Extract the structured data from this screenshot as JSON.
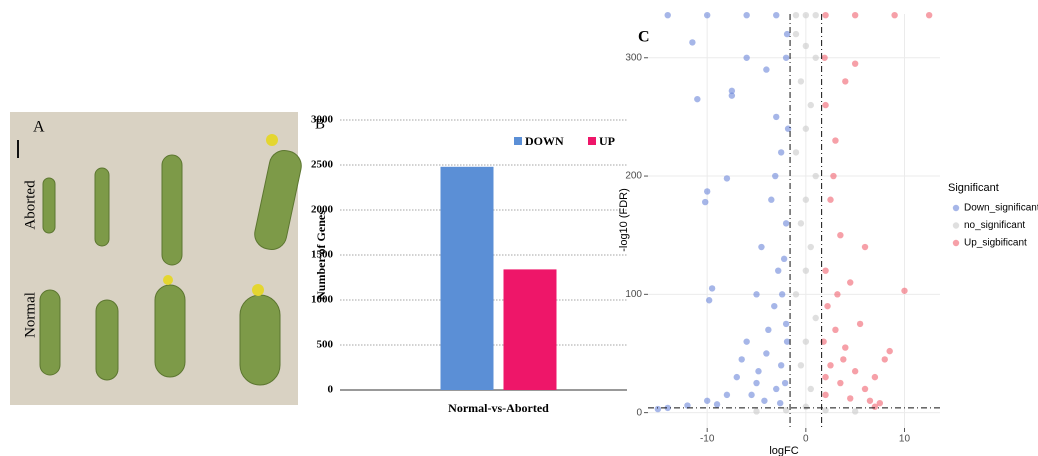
{
  "photo_panel": {
    "label": "A",
    "row_labels": [
      "Aborted",
      "Normal"
    ]
  },
  "chart_data": [
    {
      "type": "bar",
      "panel_label": "B",
      "ylabel": "Number of Genes",
      "categories": [
        "Normal-vs-Aborted"
      ],
      "series": [
        {
          "name": "DOWN",
          "color": "#5b8fd6",
          "values": [
            2480
          ]
        },
        {
          "name": "UP",
          "color": "#ee1669",
          "values": [
            1340
          ]
        }
      ],
      "ylim": [
        0,
        3000
      ],
      "yticks": [
        0,
        500,
        1000,
        1500,
        2000,
        2500,
        3000
      ],
      "grid": true,
      "legend": "upper right"
    },
    {
      "type": "scatter",
      "panel_label": "C",
      "xlabel": "logFC",
      "ylabel": "-log10 (FDR)",
      "legend_title": "Significant",
      "xlim": [
        -16,
        13.6
      ],
      "ylim": [
        -13,
        337
      ],
      "xticks": [
        -10,
        0,
        10
      ],
      "yticks": [
        0,
        100,
        200,
        300
      ],
      "vlines": [
        -1.6,
        1.6
      ],
      "hlines": [
        4
      ],
      "grid": true,
      "series": [
        {
          "name": "Down_significant",
          "color": "#6a85d9",
          "x": [
            -11,
            -11.5,
            -7.5,
            -7.5,
            -10,
            -10.2,
            -9.5,
            -9.8,
            -8,
            -6,
            -4,
            -3,
            -2.5,
            -3.5,
            -2,
            -4.5,
            -2.8,
            -5,
            -3.2,
            -2,
            -6,
            -4,
            -2.5,
            -7,
            -5,
            -3,
            -8,
            -10,
            -12,
            -14,
            -2,
            -1.8,
            -2.2,
            -1.9,
            -3.8,
            -4.8,
            -2.4,
            -3.1,
            -6.5,
            -5.5,
            -15,
            -1.9,
            -2.1,
            -2.6,
            -4.2,
            -9,
            -14,
            -10,
            -6,
            -3
          ],
          "y": [
            265,
            313,
            268,
            272,
            187,
            178,
            105,
            95,
            198,
            300,
            290,
            250,
            220,
            180,
            160,
            140,
            120,
            100,
            90,
            75,
            60,
            50,
            40,
            30,
            25,
            20,
            15,
            10,
            6,
            4,
            300,
            240,
            130,
            60,
            70,
            35,
            100,
            200,
            45,
            15,
            3,
            320,
            25,
            8,
            10,
            7,
            336,
            336,
            336,
            336
          ]
        },
        {
          "name": "no_significant",
          "color": "#c9c9c9",
          "x": [
            -1,
            0,
            1,
            -0.5,
            0.5,
            0,
            -1,
            1,
            0,
            -0.5,
            0.5,
            0,
            -1,
            1,
            0,
            -0.5,
            0.5,
            0,
            -2,
            2,
            -5,
            5,
            0,
            -1,
            1
          ],
          "y": [
            320,
            310,
            300,
            280,
            260,
            240,
            220,
            200,
            180,
            160,
            140,
            120,
            100,
            80,
            60,
            40,
            20,
            5,
            2,
            2,
            1,
            1,
            336,
            336,
            336
          ]
        },
        {
          "name": "Up_sigbificant",
          "color": "#f0606e",
          "x": [
            2,
            3,
            4,
            5,
            2.5,
            3.5,
            2,
            4.5,
            6,
            10,
            8.5,
            8,
            7,
            6,
            2.2,
            3,
            4,
            2.5,
            5,
            3.5,
            2,
            6.5,
            7.5,
            4.5,
            1.9,
            2.8,
            3.2,
            1.8,
            5.5,
            3.8,
            2,
            7,
            9,
            12.5,
            5,
            2
          ],
          "y": [
            260,
            230,
            280,
            295,
            180,
            150,
            120,
            110,
            140,
            103,
            52,
            45,
            30,
            20,
            90,
            70,
            55,
            40,
            35,
            25,
            15,
            10,
            8,
            12,
            300,
            200,
            100,
            60,
            75,
            45,
            30,
            5,
            336,
            336,
            336,
            336
          ]
        }
      ]
    }
  ]
}
